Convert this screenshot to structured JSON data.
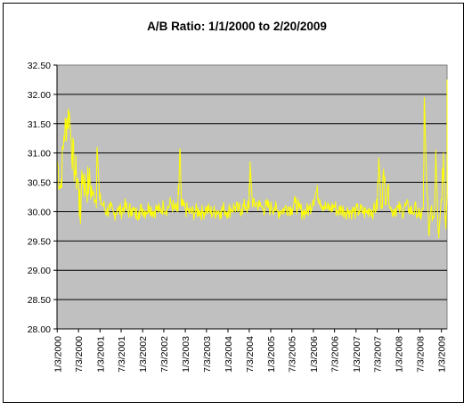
{
  "chart_data": {
    "type": "line",
    "title": "A/B Ratio:  1/1/2000 to 2/20/2009",
    "xlabel": "",
    "ylabel": "",
    "ylim": [
      28.0,
      32.5
    ],
    "y_ticks": [
      "28.00",
      "28.50",
      "29.00",
      "29.50",
      "30.00",
      "30.50",
      "31.00",
      "31.50",
      "32.00",
      "32.50"
    ],
    "x_ticks": [
      "1/3/2000",
      "7/3/2000",
      "1/3/2001",
      "7/3/2001",
      "1/3/2002",
      "7/3/2002",
      "1/3/2003",
      "7/3/2003",
      "1/3/2004",
      "7/3/2004",
      "1/3/2005",
      "7/3/2005",
      "1/3/2006",
      "7/3/2006",
      "1/3/2007",
      "7/3/2007",
      "1/3/2008",
      "7/3/2008",
      "1/3/2009"
    ],
    "x_range": [
      "1/1/2000",
      "2/20/2009"
    ],
    "grid": "horizontal",
    "legend": "none",
    "series": [
      {
        "line_color": "#ffff00",
        "x": [
          "1/1/2000",
          "2/1/2000",
          "3/1/2000",
          "4/1/2000",
          "5/1/2000",
          "6/1/2000",
          "7/1/2000",
          "8/1/2000",
          "9/1/2000",
          "10/1/2000",
          "11/1/2000",
          "12/1/2000",
          "1/1/2001",
          "2/1/2001",
          "3/1/2001",
          "4/1/2001",
          "5/1/2001",
          "6/1/2001",
          "7/1/2001",
          "8/1/2001",
          "9/1/2001",
          "10/1/2001",
          "11/1/2001",
          "12/1/2001",
          "1/1/2002",
          "2/1/2002",
          "3/1/2002",
          "4/1/2002",
          "5/1/2002",
          "6/1/2002",
          "7/1/2002",
          "8/1/2002",
          "9/1/2002",
          "10/1/2002",
          "11/1/2002",
          "12/1/2002",
          "1/1/2003",
          "2/1/2003",
          "3/1/2003",
          "4/1/2003",
          "5/1/2003",
          "6/1/2003",
          "7/1/2003",
          "8/1/2003",
          "9/1/2003",
          "10/1/2003",
          "11/1/2003",
          "12/1/2003",
          "1/1/2004",
          "2/1/2004",
          "3/1/2004",
          "4/1/2004",
          "5/1/2004",
          "6/1/2004",
          "7/1/2004",
          "8/1/2004",
          "9/1/2004",
          "10/1/2004",
          "11/1/2004",
          "12/1/2004",
          "1/1/2005",
          "2/1/2005",
          "3/1/2005",
          "4/1/2005",
          "5/1/2005",
          "6/1/2005",
          "7/1/2005",
          "8/1/2005",
          "9/1/2005",
          "10/1/2005",
          "11/1/2005",
          "12/1/2005",
          "1/1/2006",
          "2/1/2006",
          "3/1/2006",
          "4/1/2006",
          "5/1/2006",
          "6/1/2006",
          "7/1/2006",
          "8/1/2006",
          "9/1/2006",
          "10/1/2006",
          "11/1/2006",
          "12/1/2006",
          "1/1/2007",
          "2/1/2007",
          "3/1/2007",
          "4/1/2007",
          "5/1/2007",
          "6/1/2007",
          "7/1/2007",
          "8/1/2007",
          "9/1/2007",
          "10/1/2007",
          "11/1/2007",
          "12/1/2007",
          "1/1/2008",
          "2/1/2008",
          "3/1/2008",
          "4/1/2008",
          "5/1/2008",
          "6/1/2008",
          "7/1/2008",
          "8/1/2008",
          "9/1/2008",
          "10/1/2008",
          "11/1/2008",
          "12/1/2008",
          "1/1/2009",
          "2/1/2009",
          "2/20/2009"
        ],
        "values": [
          30.9,
          30.4,
          31.3,
          31.6,
          31.2,
          30.7,
          30.5,
          30.7,
          30.4,
          30.5,
          30.3,
          30.2,
          30.2,
          30.1,
          30.0,
          30.05,
          29.95,
          30.05,
          30.0,
          30.1,
          30.0,
          30.05,
          29.95,
          30.0,
          30.05,
          30.0,
          30.1,
          30.0,
          30.05,
          30.0,
          30.1,
          30.05,
          30.15,
          30.05,
          30.0,
          30.1,
          30.05,
          30.0,
          29.98,
          30.0,
          30.02,
          29.98,
          30.05,
          30.0,
          29.98,
          30.02,
          30.0,
          30.05,
          30.0,
          30.05,
          30.08,
          30.02,
          30.05,
          30.1,
          30.05,
          30.08,
          30.15,
          30.1,
          30.05,
          30.1,
          30.05,
          30.08,
          30.0,
          30.02,
          30.05,
          30.08,
          30.05,
          30.15,
          30.05,
          30.0,
          30.0,
          30.05,
          30.2,
          30.35,
          30.2,
          30.1,
          30.05,
          30.05,
          30.1,
          30.0,
          30.05,
          30.0,
          30.02,
          30.0,
          30.0,
          30.02,
          30.0,
          29.98,
          30.05,
          30.0,
          30.1,
          30.3,
          30.5,
          30.4,
          30.0,
          30.05,
          30.05,
          30.0,
          30.1,
          30.05,
          30.0,
          30.05,
          29.9,
          30.05,
          30.3,
          30.0,
          29.9,
          30.0,
          30.2,
          30.1,
          30.3
        ],
        "spikes": [
          {
            "x": "7/20/2000",
            "y": 29.8
          },
          {
            "x": "4/15/2000",
            "y": 31.7
          },
          {
            "x": "12/10/2000",
            "y": 31.1
          },
          {
            "x": "11/20/2002",
            "y": 31.05
          },
          {
            "x": "7/10/2004",
            "y": 30.85
          },
          {
            "x": "7/20/2007",
            "y": 30.8
          },
          {
            "x": "8/10/2008",
            "y": 31.95
          },
          {
            "x": "9/20/2008",
            "y": 29.6
          },
          {
            "x": "11/15/2008",
            "y": 31.05
          },
          {
            "x": "12/10/2008",
            "y": 29.55
          },
          {
            "x": "1/20/2009",
            "y": 31.0
          },
          {
            "x": "2/10/2009",
            "y": 29.7
          },
          {
            "x": "2/20/2009",
            "y": 32.25
          }
        ]
      }
    ],
    "colors": {
      "plot_bg": "#c0c0c0",
      "line": "#ffff00",
      "grid": "#000000"
    }
  }
}
